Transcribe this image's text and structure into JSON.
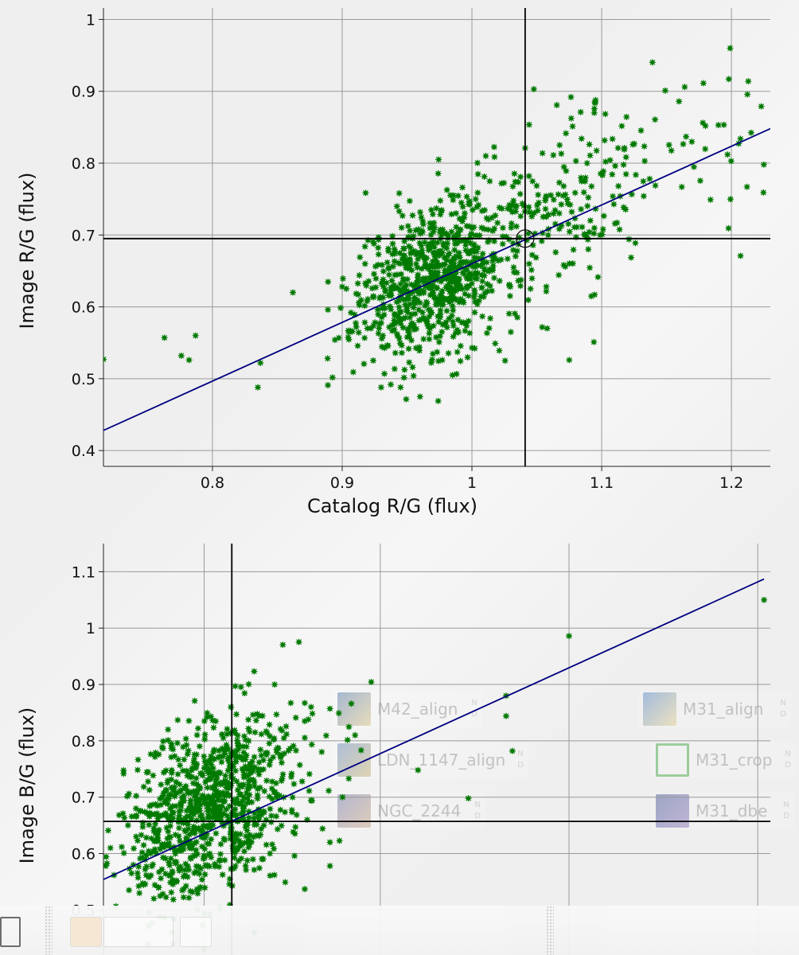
{
  "chart_data": [
    {
      "type": "scatter",
      "title": "",
      "xlabel": "Catalog R/G (flux)",
      "ylabel": "Image R/G (flux)",
      "xlim": [
        0.716,
        1.23
      ],
      "ylim": [
        0.378,
        1.016
      ],
      "xticks": [
        0.8,
        0.9,
        1,
        1.1,
        1.2
      ],
      "yticks": [
        0.4,
        0.5,
        0.6,
        0.7,
        0.8,
        0.9,
        1
      ],
      "xtick_labels": [
        "0.8",
        "0.9",
        "1",
        "1.1",
        "1.2"
      ],
      "ytick_labels": [
        "0.4",
        "0.5",
        "0.6",
        "0.7",
        "0.8",
        "0.9",
        "1"
      ],
      "grid": true,
      "point_color": "#007a00",
      "fit_line_color": "#000080",
      "fit_line": {
        "x": [
          0.716,
          1.23
        ],
        "y": [
          0.428,
          0.848
        ]
      },
      "crosshair": {
        "x": 1.041,
        "y": 0.695
      },
      "series": [
        {
          "cluster": {
            "count": 700,
            "center": [
              0.968,
              0.64
            ],
            "spread": [
              0.028,
              0.052
            ],
            "slope": 0.65,
            "seed": 11
          }
        },
        {
          "cluster": {
            "count": 240,
            "center": [
              1.05,
              0.72
            ],
            "spread": [
              0.05,
              0.06
            ],
            "slope": 0.7,
            "seed": 23
          }
        },
        {
          "cluster": {
            "count": 40,
            "center": [
              1.15,
              0.8
            ],
            "spread": [
              0.05,
              0.06
            ],
            "slope": 0.5,
            "seed": 37
          }
        },
        {
          "points": [
            [
              0.716,
              0.527
            ],
            [
              0.763,
              0.557
            ],
            [
              0.776,
              0.532
            ],
            [
              0.782,
              0.526
            ],
            [
              0.787,
              0.56
            ],
            [
              0.835,
              0.488
            ],
            [
              0.837,
              0.522
            ],
            [
              0.862,
              0.62
            ],
            [
              0.889,
              0.491
            ],
            [
              0.889,
              0.596
            ],
            [
              0.9,
              0.628
            ],
            [
              1.041,
              0.821
            ],
            [
              1.094,
              0.551
            ],
            [
              1.149,
              0.901
            ],
            [
              1.164,
              0.906
            ],
            [
              1.198,
              0.917
            ],
            [
              1.199,
              0.96
            ],
            [
              1.213,
              0.914
            ],
            [
              1.197,
              0.812
            ],
            [
              1.207,
              0.671
            ],
            [
              1.212,
              0.767
            ],
            [
              1.225,
              0.798
            ],
            [
              1.223,
              0.879
            ],
            [
              1.19,
              0.853
            ],
            [
              1.18,
              0.852
            ],
            [
              1.058,
              0.57
            ],
            [
              1.075,
              0.526
            ],
            [
              1.03,
              0.565
            ],
            [
              0.985,
              0.505
            ],
            [
              0.96,
              0.475
            ],
            [
              0.974,
              0.469
            ],
            [
              0.93,
              0.488
            ],
            [
              0.945,
              0.488
            ],
            [
              0.955,
              0.504
            ]
          ]
        }
      ]
    },
    {
      "type": "scatter",
      "title": "",
      "xlabel": "",
      "ylabel": "Image B/G (flux)",
      "xlim": [
        0.68,
        1.21
      ],
      "ylim": [
        0.42,
        1.15
      ],
      "xticks": [
        0.76,
        0.9,
        1.05,
        1.2
      ],
      "yticks": [
        0.5,
        0.6,
        0.7,
        0.8,
        0.9,
        1,
        1.1
      ],
      "xtick_labels": [
        "",
        "",
        "",
        ""
      ],
      "ytick_labels": [
        "0.5",
        "0.6",
        "0.7",
        "0.8",
        "0.9",
        "1",
        "1.1"
      ],
      "grid": true,
      "point_color": "#007a00",
      "fit_line_color": "#000080",
      "fit_line": {
        "x": [
          0.68,
          1.205
        ],
        "y": [
          0.554,
          1.087
        ]
      },
      "crosshair": {
        "x": 0.782,
        "y": 0.657
      },
      "series": [
        {
          "cluster": {
            "count": 820,
            "center": [
              0.763,
              0.675
            ],
            "spread": [
              0.034,
              0.078
            ],
            "slope": 0.9,
            "seed": 51
          }
        },
        {
          "cluster": {
            "count": 120,
            "center": [
              0.78,
              0.72
            ],
            "spread": [
              0.04,
              0.07
            ],
            "slope": 0.8,
            "seed": 63
          }
        },
        {
          "points": [
            [
              0.84,
              0.835
            ],
            [
              0.845,
              0.86
            ],
            [
              0.86,
              0.857
            ],
            [
              0.877,
              0.866
            ],
            [
              0.88,
              0.81
            ],
            [
              0.93,
              0.748
            ],
            [
              0.97,
              0.698
            ],
            [
              1.0,
              0.844
            ],
            [
              1.0,
              0.88
            ],
            [
              1.005,
              0.782
            ],
            [
              1.05,
              0.986
            ],
            [
              1.205,
              1.05
            ],
            [
              0.87,
              0.7
            ],
            [
              0.875,
              0.733
            ],
            [
              0.86,
              0.62
            ],
            [
              0.86,
              0.578
            ],
            [
              0.84,
              0.537
            ],
            [
              0.8,
              0.46
            ],
            [
              0.76,
              0.43
            ],
            [
              0.735,
              0.44
            ]
          ]
        }
      ]
    }
  ],
  "background_windows": [
    {
      "name": "M42_align",
      "corner": [
        "N",
        "D"
      ],
      "icon": "star-image-icon"
    },
    {
      "name": "LDN_1147_align",
      "corner": [
        "N",
        "D"
      ],
      "icon": "star-image-icon"
    },
    {
      "name": "NGC_2244",
      "corner": [
        "N",
        "D"
      ],
      "icon": "star-image-icon"
    },
    {
      "name": "M31_align",
      "corner": [
        "N",
        "D"
      ],
      "icon": "star-image-icon"
    },
    {
      "name": "M31_crop",
      "corner": [
        "N",
        "D"
      ],
      "icon": "crop-icon"
    },
    {
      "name": "M31_dbe",
      "corner": [
        "N",
        "D"
      ],
      "icon": "image-icon"
    }
  ]
}
